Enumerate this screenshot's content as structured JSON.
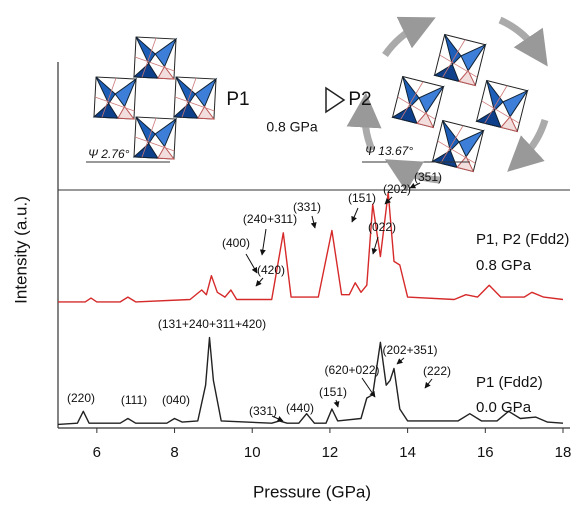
{
  "chart_data": {
    "type": "line",
    "x_label": "Pressure (GPa)",
    "y_label": "Intensity (a.u.)",
    "xlim": [
      5,
      18
    ],
    "xticks": [
      6,
      8,
      10,
      12,
      14,
      16,
      18
    ],
    "ylim": [
      0,
      100
    ],
    "series": [
      {
        "name": "P1, P2 (Fdd2)",
        "note": "0.8 GPa",
        "color": "#d62a2a",
        "x": [
          5.0,
          5.7,
          5.85,
          6.0,
          6.6,
          6.8,
          7.0,
          8.4,
          8.7,
          8.82,
          8.95,
          9.1,
          9.3,
          9.45,
          9.6,
          10.5,
          10.8,
          11.0,
          11.7,
          12.05,
          12.3,
          12.5,
          12.65,
          12.8,
          12.95,
          13.1,
          13.3,
          13.5,
          13.65,
          13.8,
          14.0,
          15.2,
          15.5,
          15.8,
          16.1,
          16.4,
          17.0,
          17.2,
          17.5,
          18.0
        ],
        "values": [
          53,
          53,
          54.6,
          53,
          53,
          55,
          53,
          54,
          58,
          56,
          64,
          57,
          55,
          58,
          54,
          54,
          82,
          55,
          55,
          83,
          56,
          56,
          61,
          57,
          60,
          94,
          72,
          99,
          70,
          68.5,
          55,
          54,
          56,
          55,
          60,
          55,
          55,
          57,
          55,
          54
        ]
      },
      {
        "name": "P1 (Fdd2)",
        "note": "0.0 GPa",
        "color": "#222222",
        "x": [
          5.0,
          5.5,
          5.65,
          5.8,
          6.6,
          6.8,
          7.0,
          7.8,
          8.0,
          8.2,
          8.6,
          8.8,
          8.9,
          9.0,
          9.2,
          10.5,
          10.7,
          10.9,
          11.2,
          11.4,
          11.6,
          11.9,
          12.05,
          12.2,
          12.8,
          12.95,
          13.1,
          13.3,
          13.45,
          13.55,
          13.65,
          13.8,
          14.0,
          15.3,
          15.6,
          15.9,
          16.3,
          16.6,
          16.9,
          17.3,
          17.6,
          18.0
        ],
        "values": [
          1.5,
          2,
          7,
          2,
          2,
          4,
          2,
          2,
          4,
          2.5,
          3,
          18,
          38,
          20,
          3,
          2,
          3,
          2,
          2,
          6,
          2,
          2,
          8,
          3,
          4,
          12.6,
          14,
          36,
          18,
          20,
          25,
          8,
          3,
          3,
          6,
          3,
          3,
          7,
          4,
          4.6,
          2.5,
          2
        ]
      }
    ],
    "annotations": [
      "(400)",
      "(240+311)",
      "(420)",
      "(331)",
      "(151)",
      "(022)",
      "(202)",
      "(351)",
      "(131+240+311+420)",
      "(620+022)",
      "(202+351)",
      "(151)",
      "(222)",
      "(331)",
      "(440)",
      "(220)",
      "(111)",
      "(040)"
    ],
    "diagram": {
      "from": "P1",
      "to": "P2",
      "condition": "0.8 GPa",
      "psi_left": "Ψ 2.76°",
      "psi_right": "Ψ 13.67°"
    }
  }
}
